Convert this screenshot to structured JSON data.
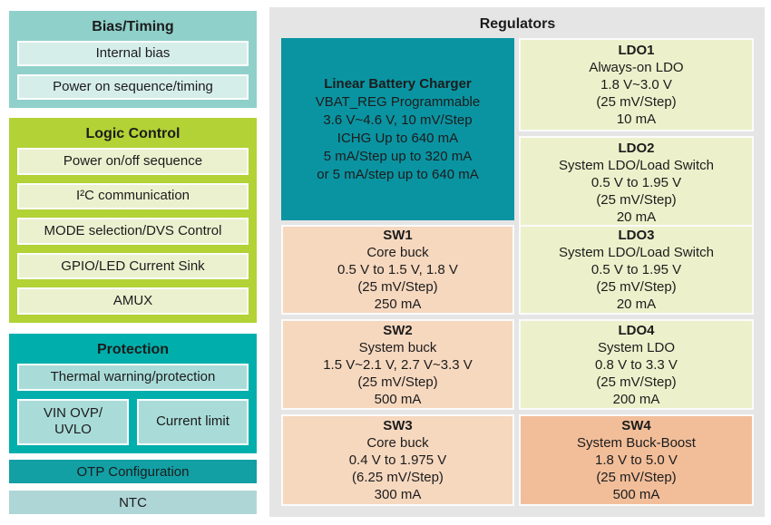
{
  "left_column": {
    "bias_timing": {
      "title": "Bias/Timing",
      "items": [
        "Internal bias",
        "Power on sequence/timing"
      ]
    },
    "logic_control": {
      "title": "Logic Control",
      "items": [
        "Power on/off sequence",
        "I²C communication",
        "MODE selection/DVS Control",
        "GPIO/LED Current Sink",
        "AMUX"
      ]
    },
    "protection": {
      "title": "Protection",
      "item_full": "Thermal warning/protection",
      "item_left_line1": "VIN OVP/",
      "item_left_line2": "UVLO",
      "item_right": "Current limit"
    },
    "otp_label": "OTP Configuration",
    "ntc_label": "NTC"
  },
  "regulators": {
    "title": "Regulators",
    "charger": {
      "title": "Linear Battery Charger",
      "lines": [
        "VBAT_REG Programmable",
        "3.6 V~4.6 V, 10 mV/Step",
        "ICHG Up to 640 mA",
        "5 mA/Step up to 320 mA",
        "or 5 mA/step up to 640 mA"
      ]
    },
    "blocks": {
      "ldo1": {
        "name": "LDO1",
        "lines": [
          "Always-on LDO",
          "1.8 V~3.0 V",
          "(25 mV/Step)",
          "10 mA"
        ]
      },
      "ldo2": {
        "name": "LDO2",
        "lines": [
          "System LDO/Load Switch",
          "0.5 V to 1.95 V",
          "(25 mV/Step)",
          "20 mA"
        ]
      },
      "sw1": {
        "name": "SW1",
        "lines": [
          "Core buck",
          "0.5 V to 1.5 V, 1.8 V",
          "(25 mV/Step)",
          "250 mA"
        ]
      },
      "ldo3": {
        "name": "LDO3",
        "lines": [
          "System LDO/Load Switch",
          "0.5 V to 1.95 V",
          "(25 mV/Step)",
          "20 mA"
        ]
      },
      "sw2": {
        "name": "SW2",
        "lines": [
          "System buck",
          "1.5 V~2.1 V, 2.7 V~3.3 V",
          "(25 mV/Step)",
          "500 mA"
        ]
      },
      "ldo4": {
        "name": "LDO4",
        "lines": [
          "System LDO",
          "0.8 V to 3.3 V",
          "(25 mV/Step)",
          "200 mA"
        ]
      },
      "sw3": {
        "name": "SW3",
        "lines": [
          "Core buck",
          "0.4 V to 1.975 V",
          "(6.25 mV/Step)",
          "300 mA"
        ]
      },
      "sw4": {
        "name": "SW4",
        "lines": [
          "System Buck-Boost",
          "1.8 V to 5.0 V",
          "(25 mV/Step)",
          "500 mA"
        ]
      }
    }
  },
  "colors": {
    "bias_bg": "#8FD0CA",
    "bias_item_bg": "#D6EEEA",
    "logic_bg": "#B2D235",
    "logic_item_bg": "#EBF1CF",
    "protection_bg": "#00AFAC",
    "protection_item_bg": "#A9DCD9",
    "otp_bg": "#12A0A5",
    "ntc_bg": "#AFD6D7",
    "panel_bg": "#E5E5E5",
    "charger_bg": "#0A94A2",
    "ldo_bg": "#ECF1CB",
    "sw_bg": "#F6D8BF",
    "sw4_bg": "#F2BE9A",
    "text": "#1C1C1C"
  }
}
